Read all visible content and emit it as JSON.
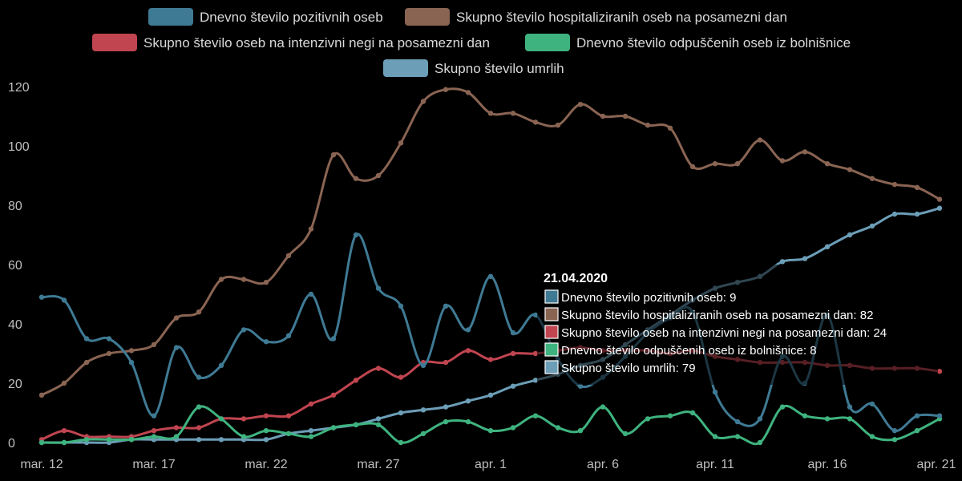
{
  "chart_data": {
    "type": "line",
    "title": "",
    "xlabel": "",
    "ylabel": "",
    "ylim": [
      0,
      120
    ],
    "yticks": [
      0,
      20,
      40,
      60,
      80,
      100,
      120
    ],
    "grid": false,
    "legend_position": "top-center",
    "x_tick_labels": [
      "mar. 12",
      "mar. 17",
      "mar. 22",
      "mar. 27",
      "apr. 1",
      "apr. 6",
      "apr. 11",
      "apr. 16",
      "apr. 21"
    ],
    "x": [
      "12.03.2020",
      "13.03.2020",
      "14.03.2020",
      "15.03.2020",
      "16.03.2020",
      "17.03.2020",
      "18.03.2020",
      "19.03.2020",
      "20.03.2020",
      "21.03.2020",
      "22.03.2020",
      "23.03.2020",
      "24.03.2020",
      "25.03.2020",
      "26.03.2020",
      "27.03.2020",
      "28.03.2020",
      "29.03.2020",
      "30.03.2020",
      "31.03.2020",
      "01.04.2020",
      "02.04.2020",
      "03.04.2020",
      "04.04.2020",
      "05.04.2020",
      "06.04.2020",
      "07.04.2020",
      "08.04.2020",
      "09.04.2020",
      "10.04.2020",
      "11.04.2020",
      "12.04.2020",
      "13.04.2020",
      "14.04.2020",
      "15.04.2020",
      "16.04.2020",
      "17.04.2020",
      "18.04.2020",
      "19.04.2020",
      "20.04.2020",
      "21.04.2020"
    ],
    "series": [
      {
        "name": "Dnevno število pozitivnih oseb",
        "color": "#3f7a94",
        "values": [
          49,
          48,
          35,
          35,
          27,
          9,
          32,
          22,
          26,
          38,
          34,
          36,
          50,
          35,
          70,
          52,
          46,
          26,
          46,
          38,
          56,
          37,
          43,
          28,
          19,
          22,
          29,
          37,
          42,
          44,
          17,
          7,
          8,
          29,
          20,
          43,
          12,
          13,
          4,
          9,
          9
        ]
      },
      {
        "name": "Skupno število hospitaliziranih oseb na posamezni dan",
        "color": "#8a6453",
        "values": [
          16,
          20,
          27,
          30,
          31,
          33,
          42,
          44,
          55,
          55,
          54,
          63,
          72,
          97,
          89,
          90,
          101,
          115,
          119,
          118,
          111,
          111,
          108,
          107,
          114,
          110,
          110,
          107,
          106,
          93,
          94,
          94,
          102,
          95,
          98,
          94,
          92,
          89,
          87,
          86,
          82
        ]
      },
      {
        "name": "Skupno število oseb na intenzivni negi na posamezni dan",
        "color": "#c04550",
        "values": [
          1,
          4,
          2,
          2,
          2,
          4,
          5,
          5,
          8,
          8,
          9,
          9,
          13,
          16,
          21,
          25,
          22,
          27,
          27,
          31,
          28,
          30,
          30,
          31,
          32,
          31,
          31,
          31,
          30,
          31,
          29,
          28,
          27,
          27,
          27,
          26,
          26,
          25,
          25,
          25,
          24
        ]
      },
      {
        "name": "Dnevno število odpuščenih oseb iz bolnišnice",
        "color": "#3fb37f",
        "values": [
          0,
          0,
          1,
          1,
          1,
          2,
          2,
          12,
          8,
          2,
          4,
          3,
          2,
          5,
          6,
          6,
          0,
          3,
          7,
          7,
          4,
          5,
          9,
          5,
          4,
          12,
          3,
          8,
          9,
          10,
          2,
          2,
          0,
          12,
          9,
          8,
          8,
          2,
          1,
          4,
          8
        ]
      },
      {
        "name": "Skupno število umrlih",
        "color": "#6c9eb7",
        "values": [
          0,
          0,
          0,
          0,
          1,
          1,
          1,
          1,
          1,
          1,
          1,
          3,
          4,
          5,
          6,
          8,
          10,
          11,
          12,
          14,
          16,
          19,
          21,
          23,
          26,
          28,
          33,
          38,
          43,
          48,
          52,
          54,
          56,
          61,
          62,
          66,
          70,
          73,
          77,
          77,
          79
        ]
      }
    ],
    "tooltip": {
      "title": "21.04.2020",
      "lines": [
        "Dnevno število pozitivnih oseb: 9",
        "Skupno število hospitaliziranih oseb na posamezni dan: 82",
        "Skupno število oseb na intenzivni negi na posamezni dan: 24",
        "Dnevno število odpuščenih oseb iz bolnišnice: 8",
        "Skupno število umrlih: 79"
      ]
    }
  }
}
